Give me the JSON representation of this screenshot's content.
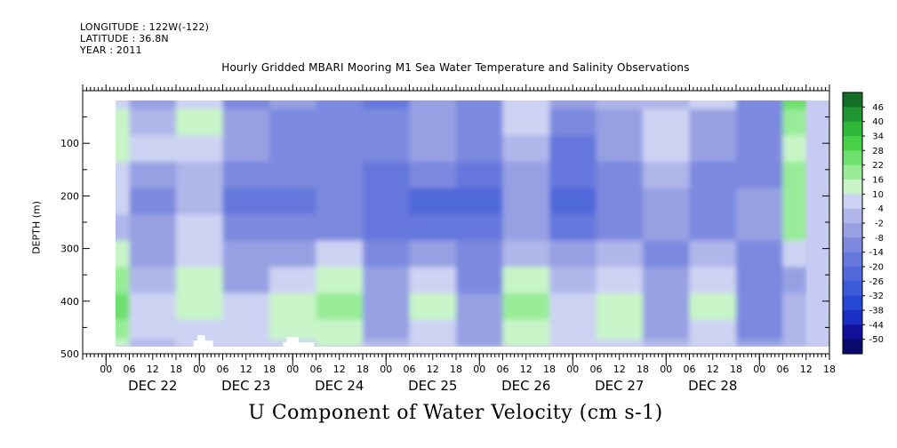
{
  "header": {
    "longitude": "LONGITUDE : 122W(-122)",
    "latitude": "LATITUDE : 36.8N",
    "year": "YEAR : 2011"
  },
  "chart_data": {
    "type": "heatmap",
    "title": "Hourly Gridded MBARI Mooring M1 Sea Water Temperature and Salinity Observations",
    "xlabel": "U Component of Water Velocity (cm s-1)",
    "ylabel": "DEPTH (m)",
    "y_axis": {
      "range": [
        0,
        500
      ],
      "inverted": true,
      "tick_values": [
        100,
        200,
        300,
        400,
        500
      ],
      "tick_labels": [
        "100",
        "200",
        "300",
        "400",
        "500"
      ]
    },
    "x_axis": {
      "range_hours": [
        -6,
        186
      ],
      "hour_tick_labels": [
        "00",
        "06",
        "12",
        "18",
        "00",
        "06",
        "12",
        "18",
        "00",
        "06",
        "12",
        "18",
        "00",
        "06",
        "12",
        "18",
        "00",
        "06",
        "12",
        "18",
        "00",
        "06",
        "12",
        "18",
        "00",
        "06",
        "12",
        "18",
        "00",
        "06",
        "12",
        "18"
      ],
      "day_labels": [
        "DEC 22",
        "DEC 23",
        "DEC 24",
        "DEC 25",
        "DEC 26",
        "DEC 27",
        "DEC 28"
      ]
    },
    "data_extent": {
      "start_hour": 0,
      "end_hour": 180,
      "min_depth_m": 10,
      "max_depth_m": 485
    },
    "colorbar": {
      "labels": [
        "46",
        "40",
        "34",
        "28",
        "22",
        "16",
        "10",
        "4",
        "-2",
        "-8",
        "-14",
        "-20",
        "-26",
        "-32",
        "-38",
        "-44",
        "-50"
      ],
      "levels": [
        -50,
        -44,
        -38,
        -32,
        -26,
        -20,
        -14,
        -8,
        -2,
        4,
        10,
        16,
        22,
        28,
        34,
        40,
        46
      ],
      "colors": [
        "#0a0a6e",
        "#10109a",
        "#1b2fc4",
        "#2646d6",
        "#3a5ad8",
        "#5068da",
        "#6577dc",
        "#7c89df",
        "#96a0e3",
        "#b0b6ea",
        "#cdd3f3",
        "#c8f5c8",
        "#98ec98",
        "#6ee06e",
        "#48d048",
        "#2fb83a",
        "#1e9530",
        "#146e26"
      ]
    },
    "field_sample_depths_m": [
      10,
      60,
      110,
      160,
      210,
      260,
      310,
      360,
      410,
      460,
      485
    ],
    "field_sample_hours": [
      0,
      12,
      24,
      36,
      48,
      60,
      72,
      84,
      96,
      108,
      120,
      132,
      144,
      156,
      168,
      180
    ],
    "values": [
      [
        8,
        -6,
        6,
        -10,
        -4,
        -14,
        -16,
        -6,
        -10,
        4,
        -8,
        -2,
        2,
        6,
        -12,
        22
      ],
      [
        12,
        -2,
        10,
        -8,
        -10,
        -12,
        -14,
        -8,
        -14,
        6,
        -10,
        -6,
        6,
        -4,
        -14,
        16
      ],
      [
        14,
        4,
        8,
        -6,
        -12,
        -10,
        -12,
        -8,
        -14,
        2,
        -16,
        -6,
        4,
        -8,
        -10,
        14
      ],
      [
        6,
        -4,
        2,
        -12,
        -14,
        -10,
        -18,
        -14,
        -18,
        -4,
        -20,
        -10,
        -2,
        -12,
        -12,
        18
      ],
      [
        4,
        -10,
        -2,
        -16,
        -16,
        -14,
        -20,
        -22,
        -22,
        -8,
        -22,
        -14,
        -6,
        -14,
        -8,
        20
      ],
      [
        2,
        -8,
        4,
        -14,
        -12,
        -12,
        -16,
        -18,
        -20,
        -6,
        -16,
        -10,
        -4,
        -12,
        -6,
        16
      ],
      [
        14,
        -4,
        8,
        -8,
        -6,
        8,
        -10,
        -8,
        -12,
        2,
        -6,
        2,
        -10,
        2,
        -10,
        6
      ],
      [
        20,
        2,
        12,
        -4,
        4,
        14,
        -8,
        6,
        -10,
        10,
        -2,
        8,
        -8,
        8,
        -12,
        -4
      ],
      [
        22,
        6,
        10,
        4,
        12,
        16,
        -6,
        10,
        -8,
        16,
        4,
        12,
        -6,
        10,
        -14,
        -2
      ],
      [
        18,
        4,
        6,
        8,
        10,
        12,
        -4,
        8,
        -6,
        14,
        6,
        10,
        -4,
        8,
        -10,
        0
      ],
      [
        12,
        2,
        4,
        6,
        8,
        10,
        -2,
        6,
        -4,
        12,
        4,
        8,
        -2,
        6,
        -8,
        2
      ]
    ]
  }
}
